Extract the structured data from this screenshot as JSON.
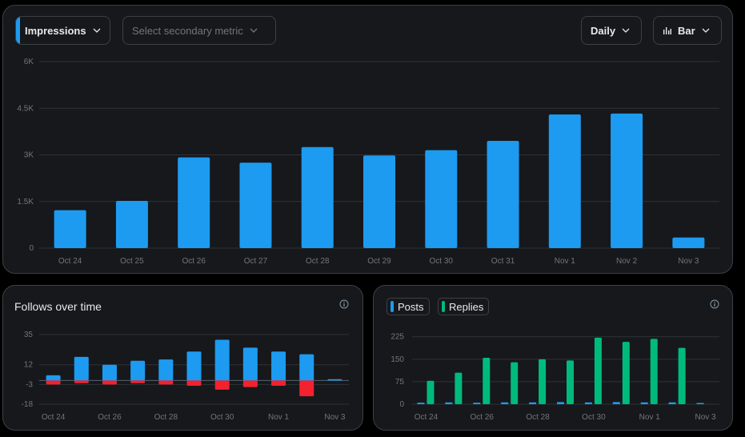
{
  "toolbar": {
    "metric_label": "Impressions",
    "secondary_placeholder": "Select secondary metric",
    "range_label": "Daily",
    "chart_type_label": "Bar",
    "accent_color": "#1d9bf0"
  },
  "follows_panel": {
    "title": "Follows over time",
    "info_icon": "info-icon"
  },
  "content_panel": {
    "legend": [
      "Posts",
      "Replies"
    ],
    "info_icon": "info-icon"
  },
  "colors": {
    "impressions": "#1d9bf0",
    "follows": "#1d9bf0",
    "unfollows": "#f4212e",
    "posts": "#1d9bf0",
    "replies": "#00ba7c"
  },
  "chart_data": [
    {
      "type": "bar",
      "categories": [
        "Oct 24",
        "Oct 25",
        "Oct 26",
        "Oct 27",
        "Oct 28",
        "Oct 29",
        "Oct 30",
        "Oct 31",
        "Nov 1",
        "Nov 2",
        "Nov 3"
      ],
      "series": [
        {
          "name": "Impressions",
          "values": [
            1220,
            1520,
            2920,
            2750,
            3250,
            2980,
            3150,
            3450,
            4300,
            4330,
            340
          ]
        }
      ],
      "yticks": [
        "0",
        "1.5K",
        "3K",
        "4.5K",
        "6K"
      ],
      "ylim": [
        0,
        6000
      ],
      "grid": true
    },
    {
      "type": "bar",
      "title": "Follows over time",
      "categories": [
        "Oct 24",
        "Oct 25",
        "Oct 26",
        "Oct 27",
        "Oct 28",
        "Oct 29",
        "Oct 30",
        "Oct 31",
        "Nov 1",
        "Nov 2",
        "Nov 3"
      ],
      "xtick_labels": [
        "Oct 24",
        "Oct 26",
        "Oct 28",
        "Oct 30",
        "Nov 1",
        "Nov 3"
      ],
      "series": [
        {
          "values": [
            4,
            18,
            12,
            15,
            16,
            22,
            31,
            25,
            22,
            20,
            1
          ]
        },
        {
          "values": [
            -3,
            -2,
            -3,
            -2,
            -3,
            -4,
            -7,
            -5,
            -4,
            -12,
            0
          ]
        }
      ],
      "yticks": [
        "-18",
        "-3",
        "12",
        "35"
      ],
      "yticks_values": [
        -18,
        -3,
        12,
        35
      ],
      "ylim": [
        -18,
        38
      ],
      "grid": true
    },
    {
      "type": "bar",
      "categories": [
        "Oct 24",
        "Oct 25",
        "Oct 26",
        "Oct 27",
        "Oct 28",
        "Oct 29",
        "Oct 30",
        "Oct 31",
        "Nov 1",
        "Nov 2",
        "Nov 3"
      ],
      "xtick_labels": [
        "Oct 24",
        "Oct 26",
        "Oct 28",
        "Oct 30",
        "Nov 1",
        "Nov 3"
      ],
      "series": [
        {
          "name": "Posts",
          "values": [
            1,
            2,
            1,
            2,
            2,
            3,
            2,
            3,
            2,
            2,
            0
          ]
        },
        {
          "name": "Replies",
          "values": [
            78,
            105,
            155,
            140,
            150,
            146,
            222,
            208,
            218,
            188,
            0
          ]
        }
      ],
      "yticks": [
        "0",
        "75",
        "150",
        "225"
      ],
      "ylim": [
        0,
        235
      ],
      "grid": true,
      "legend": "top-left"
    }
  ]
}
